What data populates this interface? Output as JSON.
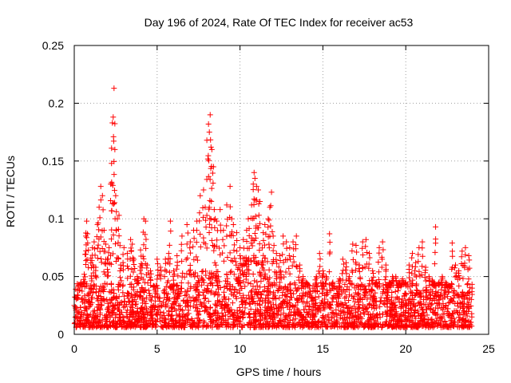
{
  "chart_data": {
    "type": "scatter",
    "title": "Day 196 of 2024, Rate Of TEC Index for receiver ac53",
    "xlabel": "GPS time / hours",
    "ylabel": "ROTI / TECUs",
    "xlim": [
      0,
      25
    ],
    "ylim": [
      0,
      0.25
    ],
    "xticks": [
      0,
      5,
      10,
      15,
      20,
      25
    ],
    "yticks": [
      0,
      0.05,
      0.1,
      0.15,
      0.2,
      0.25
    ],
    "xtick_labels": [
      "0",
      "5",
      "10",
      "15",
      "20",
      "25"
    ],
    "ytick_labels": [
      "0",
      "0.05",
      "0.1",
      "0.15",
      "0.2",
      "0.25"
    ],
    "grid": true,
    "marker": "plus",
    "color": "#ff0000",
    "series": [
      {
        "points": [
          [
            0.1,
            0.021
          ],
          [
            0.2,
            0.034
          ],
          [
            0.3,
            0.038
          ],
          [
            0.4,
            0.045
          ],
          [
            0.5,
            0.028
          ],
          [
            0.6,
            0.052
          ],
          [
            0.7,
            0.085
          ],
          [
            0.75,
            0.098
          ],
          [
            0.8,
            0.087
          ],
          [
            0.9,
            0.04
          ],
          [
            1.0,
            0.066
          ],
          [
            1.1,
            0.075
          ],
          [
            1.2,
            0.08
          ],
          [
            1.3,
            0.058
          ],
          [
            1.4,
            0.095
          ],
          [
            1.5,
            0.11
          ],
          [
            1.6,
            0.128
          ],
          [
            1.7,
            0.12
          ],
          [
            1.8,
            0.09
          ],
          [
            1.9,
            0.078
          ],
          [
            2.0,
            0.065
          ],
          [
            2.1,
            0.075
          ],
          [
            2.2,
            0.13
          ],
          [
            2.25,
            0.148
          ],
          [
            2.3,
            0.183
          ],
          [
            2.35,
            0.188
          ],
          [
            2.4,
            0.213
          ],
          [
            2.45,
            0.16
          ],
          [
            2.5,
            0.12
          ],
          [
            2.6,
            0.1
          ],
          [
            2.7,
            0.103
          ],
          [
            2.8,
            0.06
          ],
          [
            3.0,
            0.075
          ],
          [
            3.2,
            0.07
          ],
          [
            3.4,
            0.082
          ],
          [
            3.5,
            0.078
          ],
          [
            3.6,
            0.065
          ],
          [
            3.8,
            0.05
          ],
          [
            4.0,
            0.073
          ],
          [
            4.1,
            0.06
          ],
          [
            4.2,
            0.1
          ],
          [
            4.3,
            0.098
          ],
          [
            4.4,
            0.06
          ],
          [
            4.6,
            0.055
          ],
          [
            4.8,
            0.042
          ],
          [
            5.0,
            0.065
          ],
          [
            5.2,
            0.058
          ],
          [
            5.5,
            0.065
          ],
          [
            5.7,
            0.07
          ],
          [
            5.8,
            0.098
          ],
          [
            6.0,
            0.055
          ],
          [
            6.2,
            0.068
          ],
          [
            6.5,
            0.085
          ],
          [
            6.8,
            0.095
          ],
          [
            7.0,
            0.08
          ],
          [
            7.2,
            0.09
          ],
          [
            7.4,
            0.098
          ],
          [
            7.6,
            0.12
          ],
          [
            7.8,
            0.125
          ],
          [
            7.9,
            0.11
          ],
          [
            8.0,
            0.168
          ],
          [
            8.1,
            0.182
          ],
          [
            8.15,
            0.175
          ],
          [
            8.2,
            0.19
          ],
          [
            8.25,
            0.162
          ],
          [
            8.3,
            0.16
          ],
          [
            8.4,
            0.145
          ],
          [
            8.5,
            0.1
          ],
          [
            8.6,
            0.098
          ],
          [
            8.8,
            0.108
          ],
          [
            9.0,
            0.09
          ],
          [
            9.2,
            0.112
          ],
          [
            9.4,
            0.128
          ],
          [
            9.5,
            0.1
          ],
          [
            9.6,
            0.095
          ],
          [
            9.8,
            0.088
          ],
          [
            10.0,
            0.075
          ],
          [
            10.2,
            0.082
          ],
          [
            10.4,
            0.09
          ],
          [
            10.5,
            0.1
          ],
          [
            10.7,
            0.112
          ],
          [
            10.8,
            0.13
          ],
          [
            10.85,
            0.14
          ],
          [
            10.9,
            0.135
          ],
          [
            11.0,
            0.128
          ],
          [
            11.1,
            0.125
          ],
          [
            11.2,
            0.115
          ],
          [
            11.4,
            0.088
          ],
          [
            11.5,
            0.095
          ],
          [
            11.7,
            0.1
          ],
          [
            11.8,
            0.11
          ],
          [
            11.9,
            0.123
          ],
          [
            12.0,
            0.085
          ],
          [
            12.2,
            0.07
          ],
          [
            12.4,
            0.068
          ],
          [
            12.6,
            0.085
          ],
          [
            12.8,
            0.08
          ],
          [
            13.0,
            0.075
          ],
          [
            13.2,
            0.08
          ],
          [
            13.4,
            0.085
          ],
          [
            13.6,
            0.06
          ],
          [
            13.8,
            0.05
          ],
          [
            14.0,
            0.045
          ],
          [
            14.2,
            0.04
          ],
          [
            14.4,
            0.038
          ],
          [
            14.6,
            0.05
          ],
          [
            14.8,
            0.07
          ],
          [
            15.0,
            0.055
          ],
          [
            15.2,
            0.05
          ],
          [
            15.4,
            0.087
          ],
          [
            15.6,
            0.045
          ],
          [
            15.8,
            0.04
          ],
          [
            16.0,
            0.048
          ],
          [
            16.2,
            0.065
          ],
          [
            16.4,
            0.062
          ],
          [
            16.6,
            0.05
          ],
          [
            16.8,
            0.078
          ],
          [
            17.0,
            0.077
          ],
          [
            17.2,
            0.06
          ],
          [
            17.4,
            0.08
          ],
          [
            17.6,
            0.082
          ],
          [
            17.8,
            0.07
          ],
          [
            18.0,
            0.055
          ],
          [
            18.2,
            0.045
          ],
          [
            18.4,
            0.075
          ],
          [
            18.6,
            0.08
          ],
          [
            18.8,
            0.06
          ],
          [
            19.0,
            0.045
          ],
          [
            19.2,
            0.05
          ],
          [
            19.4,
            0.05
          ],
          [
            19.6,
            0.045
          ],
          [
            19.8,
            0.048
          ],
          [
            20.0,
            0.045
          ],
          [
            20.2,
            0.06
          ],
          [
            20.4,
            0.07
          ],
          [
            20.6,
            0.062
          ],
          [
            20.8,
            0.075
          ],
          [
            21.0,
            0.08
          ],
          [
            21.2,
            0.058
          ],
          [
            21.4,
            0.05
          ],
          [
            21.6,
            0.047
          ],
          [
            21.8,
            0.093
          ],
          [
            22.0,
            0.045
          ],
          [
            22.2,
            0.05
          ],
          [
            22.4,
            0.045
          ],
          [
            22.6,
            0.042
          ],
          [
            22.8,
            0.079
          ],
          [
            23.0,
            0.06
          ],
          [
            23.2,
            0.055
          ],
          [
            23.4,
            0.072
          ],
          [
            23.6,
            0.075
          ],
          [
            23.8,
            0.068
          ],
          [
            24.0,
            0.04
          ]
        ]
      }
    ],
    "background_band": {
      "x_start": 0,
      "x_end": 24,
      "base_low": 0.006,
      "base_high": 0.045
    }
  }
}
